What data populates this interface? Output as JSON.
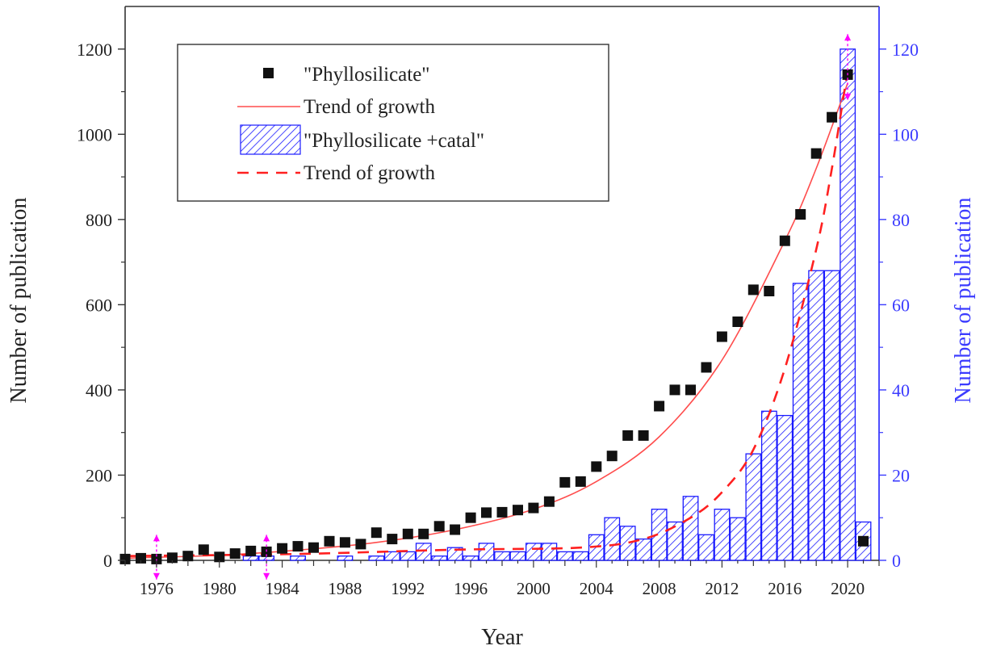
{
  "chart_data": {
    "type": "bar",
    "xlabel": "Year",
    "ylabel_left": "Number of publication",
    "ylabel_right": "Number of publication",
    "xlim": [
      1974,
      2022
    ],
    "ylim_left": [
      0,
      1300
    ],
    "ylim_right": [
      0,
      130
    ],
    "x_ticks": [
      1976,
      1980,
      1984,
      1988,
      1992,
      1996,
      2000,
      2004,
      2008,
      2012,
      2016,
      2020
    ],
    "y_ticks_left": [
      0,
      200,
      400,
      600,
      800,
      1000,
      1200
    ],
    "y_ticks_right": [
      0,
      20,
      40,
      60,
      80,
      100,
      120
    ],
    "colors": {
      "scatter": "#111111",
      "trend_solid": "#ff4d4d",
      "bars": "#1a1aff",
      "trend_dashed": "#ff2020",
      "marker": "#ff00ff",
      "axis_left": "#222222",
      "axis_right": "#3b3bff"
    },
    "legend": {
      "position": "top-left",
      "entries": [
        {
          "label": "\"Phyllosilicate\"",
          "kind": "square"
        },
        {
          "label": "Trend of growth",
          "kind": "solid-line"
        },
        {
          "label": "\"Phyllosilicate +catal\"",
          "kind": "hatched-bar"
        },
        {
          "label": "Trend of growth",
          "kind": "dashed-line"
        }
      ]
    },
    "series": [
      {
        "name": "\"Phyllosilicate\"",
        "axis": "left",
        "kind": "scatter",
        "x": [
          1974,
          1975,
          1976,
          1977,
          1978,
          1979,
          1980,
          1981,
          1982,
          1983,
          1984,
          1985,
          1986,
          1987,
          1988,
          1989,
          1990,
          1991,
          1992,
          1993,
          1994,
          1995,
          1996,
          1997,
          1998,
          1999,
          2000,
          2001,
          2002,
          2003,
          2004,
          2005,
          2006,
          2007,
          2008,
          2009,
          2010,
          2011,
          2012,
          2013,
          2014,
          2015,
          2016,
          2017,
          2018,
          2019,
          2020,
          2021
        ],
        "values": [
          3,
          5,
          3,
          6,
          10,
          25,
          8,
          16,
          22,
          20,
          28,
          33,
          30,
          45,
          42,
          38,
          65,
          50,
          62,
          62,
          80,
          72,
          100,
          112,
          113,
          118,
          123,
          138,
          183,
          185,
          220,
          245,
          293,
          293,
          362,
          400,
          400,
          453,
          525,
          560,
          635,
          632,
          750,
          812,
          955,
          1040,
          1140,
          45
        ]
      },
      {
        "name": "Trend of growth",
        "axis": "left",
        "kind": "solid-curve",
        "x": [
          1974,
          1980,
          1985,
          1990,
          1995,
          2000,
          2004,
          2008,
          2012,
          2016,
          2018,
          2020
        ],
        "values": [
          5,
          12,
          24,
          42,
          72,
          120,
          185,
          290,
          470,
          750,
          920,
          1120
        ]
      },
      {
        "name": "\"Phyllosilicate +catal\"",
        "axis": "right",
        "kind": "hatched-bars",
        "x": [
          1982,
          1983,
          1985,
          1988,
          1990,
          1991,
          1992,
          1993,
          1994,
          1995,
          1996,
          1997,
          1998,
          1999,
          2000,
          2001,
          2002,
          2003,
          2004,
          2005,
          2006,
          2007,
          2008,
          2009,
          2010,
          2011,
          2012,
          2013,
          2014,
          2015,
          2016,
          2017,
          2018,
          2019,
          2020,
          2021
        ],
        "values": [
          1,
          1,
          1,
          1,
          1,
          2,
          2,
          4,
          1,
          3,
          1,
          4,
          2,
          2,
          4,
          4,
          2,
          2,
          6,
          10,
          8,
          5,
          12,
          9,
          15,
          6,
          12,
          10,
          25,
          35,
          34,
          65,
          68,
          68,
          120,
          9
        ]
      },
      {
        "name": "Trend of growth",
        "axis": "right",
        "kind": "dashed-curve",
        "x": [
          1974,
          1985,
          1995,
          2003,
          2007,
          2010,
          2012,
          2014,
          2016,
          2018,
          2019,
          2020
        ],
        "values": [
          1,
          1.5,
          2.5,
          3,
          5,
          10,
          16,
          26,
          45,
          73,
          92,
          115
        ]
      }
    ],
    "markers": [
      {
        "x": 1976,
        "axis": "left",
        "range": [
          -45,
          60
        ]
      },
      {
        "x": 1983,
        "axis": "left",
        "range": [
          -45,
          60
        ]
      },
      {
        "x": 2020,
        "axis": "left",
        "range": [
          1080,
          1235
        ]
      }
    ]
  }
}
